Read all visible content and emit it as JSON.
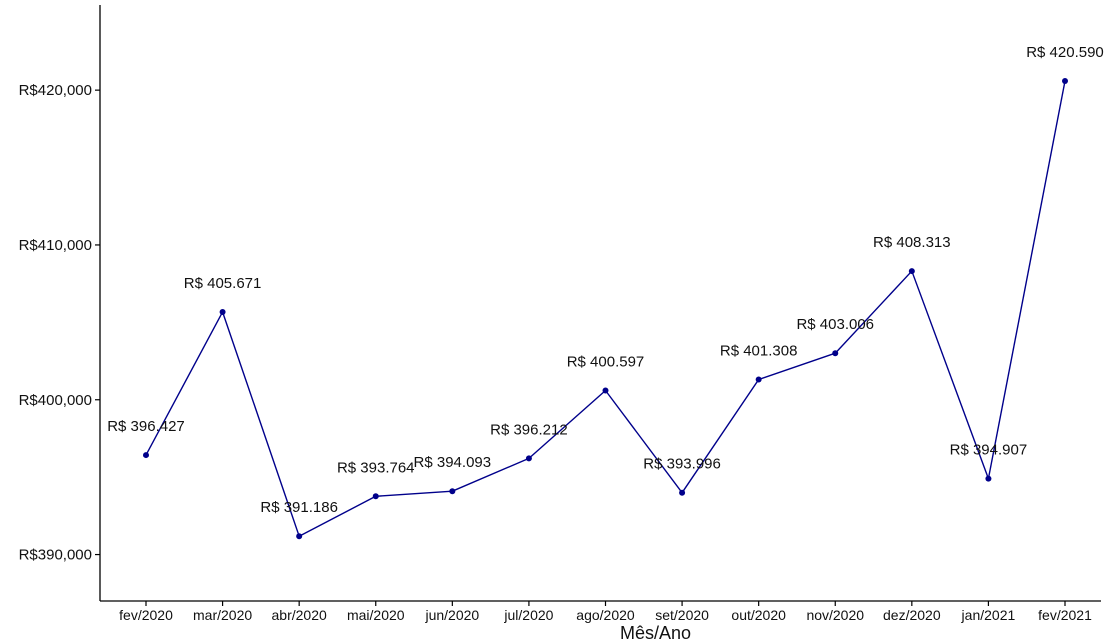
{
  "chart_data": {
    "type": "line",
    "xlabel": "Mês/Ano",
    "ylabel": "",
    "categories": [
      "fev/2020",
      "mar/2020",
      "abr/2020",
      "mai/2020",
      "jun/2020",
      "jul/2020",
      "ago/2020",
      "set/2020",
      "out/2020",
      "nov/2020",
      "dez/2020",
      "jan/2021",
      "fev/2021"
    ],
    "values": [
      396427,
      405671,
      391186,
      393764,
      394093,
      396212,
      400597,
      393996,
      401308,
      403006,
      408313,
      394907,
      420590
    ],
    "data_labels": [
      "R$ 396.427",
      "R$ 405.671",
      "R$ 391.186",
      "R$ 393.764",
      "R$ 394.093",
      "R$ 396.212",
      "R$ 400.597",
      "R$ 393.996",
      "R$ 401.308",
      "R$ 403.006",
      "R$ 408.313",
      "R$ 394.907",
      "R$ 420.590"
    ],
    "y_ticks": [
      390000,
      400000,
      410000,
      420000
    ],
    "y_tick_labels": [
      "R$390,000",
      "R$400,000",
      "R$410,000",
      "R$420,000"
    ],
    "ylim": [
      387000,
      425500
    ],
    "grid": false,
    "legend": "none",
    "line_color": "#00008B",
    "point_color": "#00008B"
  }
}
